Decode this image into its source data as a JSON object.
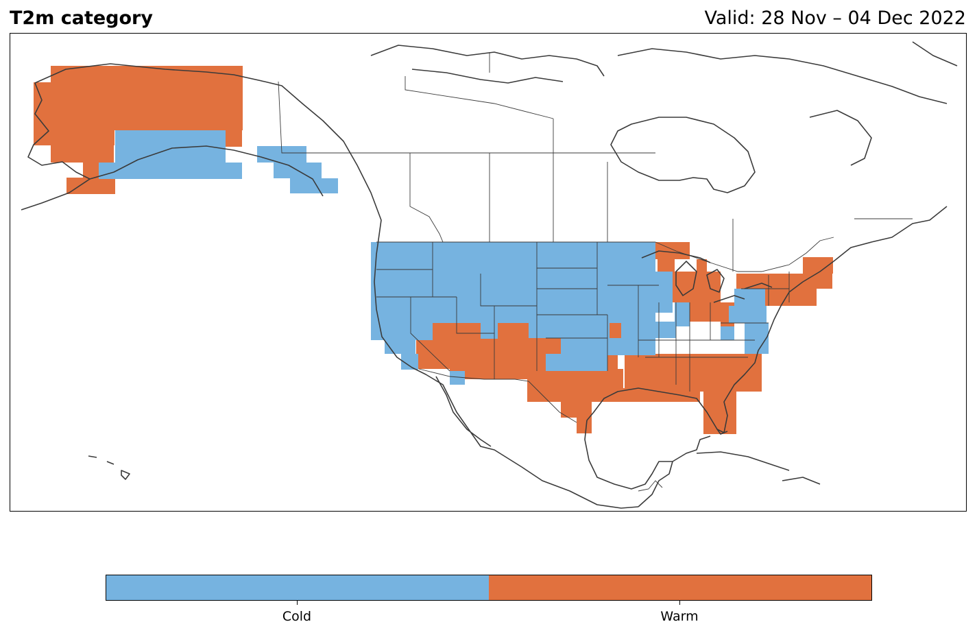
{
  "title": "T2m category",
  "valid": "Valid: 28 Nov – 04 Dec 2022",
  "legend": {
    "categories": [
      {
        "label": "Cold",
        "color": "#76b3e0"
      },
      {
        "label": "Warm",
        "color": "#e1713e"
      }
    ]
  },
  "colors": {
    "cold": "#76b3e0",
    "warm": "#e1713e",
    "coastline": "#3a3a3a",
    "border": "#3a3a3a"
  }
}
